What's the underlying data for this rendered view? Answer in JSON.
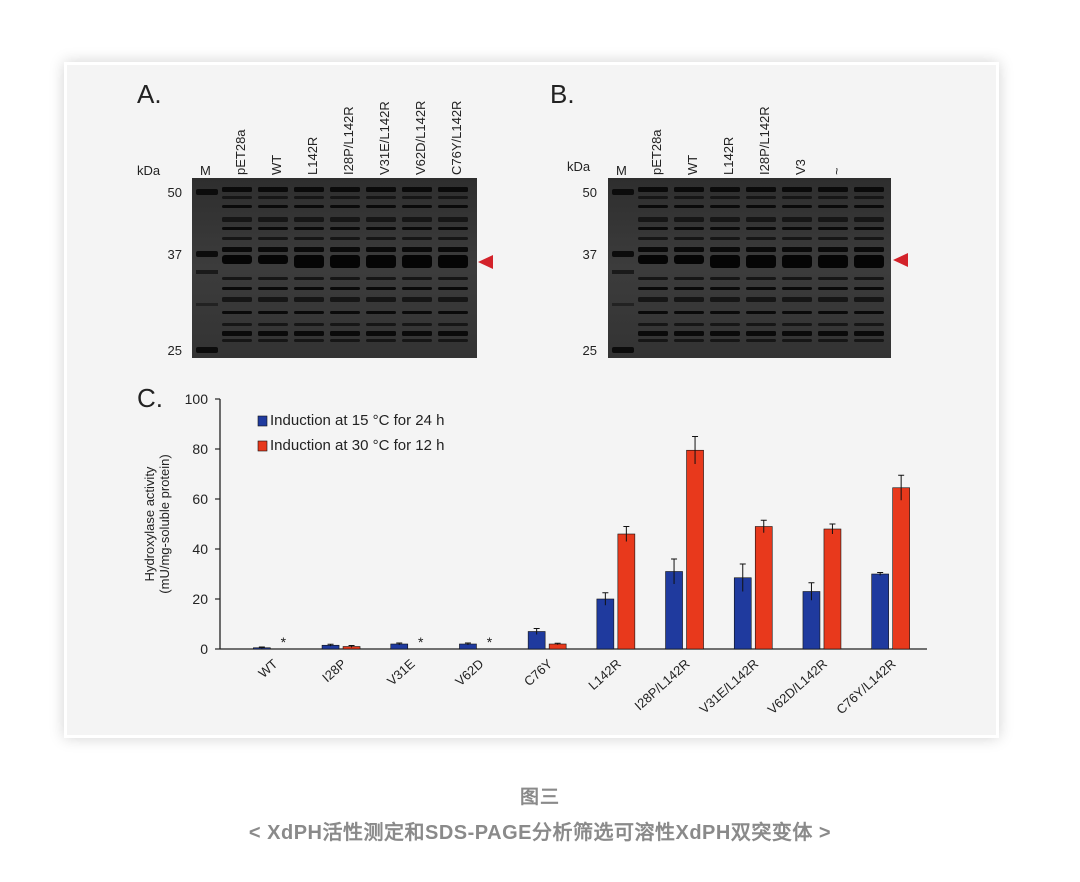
{
  "panels": {
    "a": {
      "letter": "A.",
      "kda_label": "kDa",
      "markers": [
        "50",
        "37",
        "25"
      ],
      "lanes": [
        "M",
        "pET28a",
        "WT",
        "L142R",
        "I28P/L142R",
        "V31E/L142R",
        "V62D/L142R",
        "C76Y/L142R"
      ]
    },
    "b": {
      "letter": "B.",
      "kda_label": "kDa",
      "markers": [
        "50",
        "37",
        "25"
      ],
      "lanes": [
        "M",
        "pET28a",
        "WT",
        "L142R",
        "I28P/L142R",
        "V3",
        "~",
        ""
      ]
    },
    "c": {
      "letter": "C."
    }
  },
  "colors": {
    "series_15": "#1f3a9e",
    "series_30": "#e8391c",
    "gel_bg": "#3a3a3a",
    "arrow": "#d3222a",
    "caption": "#8a8a8a"
  },
  "chart_data": {
    "type": "bar",
    "title": "",
    "xlabel": "",
    "ylabel": "Hydroxylase activity (mU/mg-soluble protein)",
    "ylabel_lines": [
      "Hydroxylase activity",
      "(mU/mg-soluble protein)"
    ],
    "ylim": [
      0,
      100
    ],
    "yticks": [
      0,
      20,
      40,
      60,
      80,
      100
    ],
    "categories": [
      "WT",
      "I28P",
      "V31E",
      "V62D",
      "C76Y",
      "L142R",
      "I28P/L142R",
      "V31E/L142R",
      "V62D/L142R",
      "C76Y/L142R"
    ],
    "series": [
      {
        "name": "Induction at 15 °C for 24 h",
        "values": [
          0.5,
          1.5,
          2,
          2,
          7,
          20,
          31,
          28.5,
          23,
          30
        ],
        "errors": [
          0.3,
          0.4,
          0.4,
          0.4,
          1.2,
          2.5,
          5,
          5.5,
          3.5,
          0.6
        ]
      },
      {
        "name": "Induction at 30 °C for 12 h",
        "values": [
          null,
          1,
          null,
          null,
          2,
          46,
          79.5,
          49,
          48,
          64.5
        ],
        "errors": [
          null,
          0.4,
          null,
          null,
          0.3,
          3,
          5.5,
          2.5,
          2,
          5
        ]
      }
    ],
    "markers": [
      {
        "category": "WT",
        "label": "*"
      },
      {
        "category": "V31E",
        "label": "*"
      },
      {
        "category": "V62D",
        "label": "*"
      }
    ],
    "legend_position": "top-left"
  },
  "caption": {
    "title": "图三",
    "subtitle": "< XdPH活性测定和SDS-PAGE分析筛选可溶性XdPH双突变体 >"
  }
}
